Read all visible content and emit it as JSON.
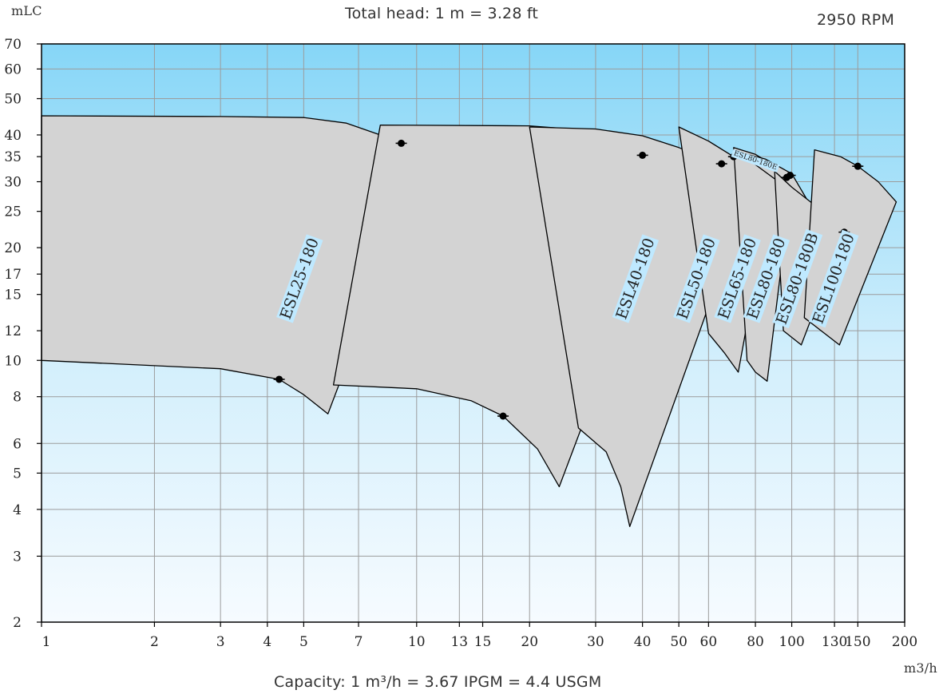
{
  "header": {
    "y_unit": "mLC",
    "title": "Total head: 1 m = 3.28 ft",
    "speed": "2950 RPM"
  },
  "footer": {
    "x_unit": "m3/h",
    "capacity_note": "Capacity: 1 m³/h = 3.67 IPGM = 4.4 USGM"
  },
  "colors": {
    "envelope_fill": "#d3d3d3",
    "envelope_stroke": "#000000",
    "grid": "#9c9c9c",
    "label_bg": "#bfe9ff",
    "bg_top": "#86d6f7",
    "bg_bottom": "#f6fbff"
  },
  "chart_data": {
    "type": "area",
    "x_scale": "log",
    "y_scale": "log",
    "xlim": [
      1,
      200
    ],
    "ylim": [
      2,
      70
    ],
    "x_ticks": [
      1,
      2,
      3,
      4,
      5,
      7,
      10,
      13,
      15,
      20,
      30,
      40,
      50,
      60,
      80,
      100,
      130,
      150,
      200
    ],
    "y_ticks": [
      2,
      3,
      4,
      5,
      6,
      8,
      10,
      12,
      15,
      17,
      20,
      25,
      30,
      35,
      40,
      50,
      60,
      70
    ],
    "grid": true,
    "series": [
      {
        "name": "ESL25-180",
        "label_pos": [
          4.9,
          16.5
        ],
        "upper": [
          [
            1,
            45
          ],
          [
            3,
            44.8
          ],
          [
            5,
            44.5
          ],
          [
            6.5,
            43
          ],
          [
            8,
            40
          ],
          [
            9.1,
            38
          ],
          [
            10.5,
            34.5
          ]
        ],
        "lower": [
          [
            1,
            10
          ],
          [
            3,
            9.5
          ],
          [
            4.3,
            8.9
          ],
          [
            5,
            8.1
          ],
          [
            5.8,
            7.2
          ]
        ],
        "marks": [
          [
            9.1,
            38
          ],
          [
            4.3,
            8.9
          ]
        ]
      },
      {
        "name": "ESL40-180",
        "label_pos": [
          38.5,
          16.5
        ],
        "upper": [
          [
            8,
            42.5
          ],
          [
            20,
            42.3
          ],
          [
            30,
            41
          ],
          [
            40,
            35.3
          ],
          [
            48,
            29
          ]
        ],
        "lower": [
          [
            6,
            8.6
          ],
          [
            10,
            8.4
          ],
          [
            14,
            7.8
          ],
          [
            17,
            7.1
          ],
          [
            21,
            5.8
          ],
          [
            24,
            4.6
          ]
        ],
        "marks": [
          [
            40,
            35.3
          ],
          [
            17,
            7.1
          ]
        ]
      },
      {
        "name": "ESL50-180",
        "label_pos": [
          56,
          16.5
        ],
        "upper": [
          [
            20,
            42
          ],
          [
            30,
            41.5
          ],
          [
            40,
            39.8
          ],
          [
            50,
            37
          ],
          [
            60,
            34.5
          ],
          [
            65,
            33.5
          ],
          [
            76,
            27
          ]
        ],
        "lower": [
          [
            27,
            6.6
          ],
          [
            32,
            5.7
          ],
          [
            35,
            4.6
          ],
          [
            37,
            3.6
          ]
        ],
        "marks": [
          [
            65,
            33.5
          ]
        ]
      },
      {
        "name": "ESL65-180",
        "label_pos": [
          72,
          16.5
        ],
        "upper": [
          [
            50,
            42
          ],
          [
            60,
            38.5
          ],
          [
            70,
            35
          ],
          [
            80,
            32
          ],
          [
            88,
            28
          ]
        ],
        "lower": [
          [
            60,
            11.8
          ],
          [
            66,
            10.5
          ],
          [
            72,
            9.3
          ]
        ],
        "marks": [
          [
            70,
            35
          ]
        ]
      },
      {
        "name": "ESL80-180",
        "label_pos": [
          86,
          16.5
        ],
        "upper": [
          [
            70,
            37
          ],
          [
            80,
            35.5
          ],
          [
            90,
            33
          ],
          [
            100,
            30
          ]
        ],
        "lower": [
          [
            76,
            10
          ],
          [
            80,
            9.3
          ],
          [
            86,
            8.8
          ]
        ],
        "marks": [
          [
            97,
            30.8
          ]
        ]
      },
      {
        "name": "ESL80-180E",
        "label_pos": [
          80,
          34.2
        ],
        "upper": [
          [
            72,
            36
          ],
          [
            85,
            34.5
          ],
          [
            100,
            31.5
          ],
          [
            112,
            26
          ]
        ],
        "lower": [],
        "marks": [
          [
            99,
            31.2
          ]
        ]
      },
      {
        "name": "ESL80-180B",
        "label_pos": [
          104,
          16.5
        ],
        "upper": [
          [
            90,
            32
          ],
          [
            100,
            29
          ],
          [
            115,
            26
          ],
          [
            130,
            22.5
          ],
          [
            138,
            22
          ]
        ],
        "lower": [
          [
            95,
            12
          ],
          [
            106,
            11
          ]
        ],
        "marks": [
          [
            138,
            22
          ]
        ]
      },
      {
        "name": "ESL100-180",
        "label_pos": [
          130,
          16.5
        ],
        "upper": [
          [
            115,
            36.5
          ],
          [
            135,
            35
          ],
          [
            150,
            33
          ],
          [
            170,
            30
          ],
          [
            190,
            26.5
          ]
        ],
        "lower": [
          [
            108,
            13
          ],
          [
            134,
            11
          ]
        ],
        "marks": [
          [
            150,
            33
          ]
        ]
      }
    ]
  }
}
